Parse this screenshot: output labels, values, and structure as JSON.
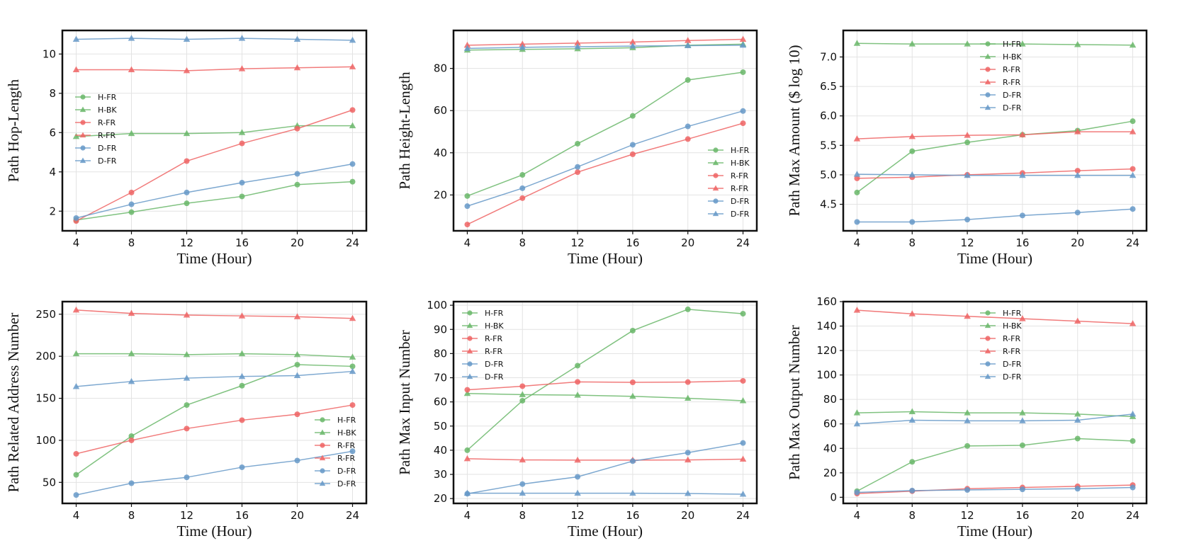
{
  "colors": {
    "green": "#6ab76a",
    "red": "#ee6464",
    "blue": "#6699c8",
    "frame": "#111111",
    "grid": "#e3e3e3"
  },
  "chart_data": [
    {
      "type": "line",
      "xlabel": "Time (Hour)",
      "ylabel": "Path Hop-Length",
      "x": [
        4,
        8,
        12,
        16,
        20,
        24
      ],
      "xlim": [
        3,
        25
      ],
      "ylim": [
        1,
        11.2
      ],
      "yticks": [
        2,
        4,
        6,
        8,
        10
      ],
      "ytick_labels": [
        "2",
        "4",
        "6",
        "8",
        "10"
      ],
      "legend_loc": "center-left",
      "series": [
        {
          "name": "H-FR",
          "color": "green",
          "marker": "circle",
          "values": [
            1.55,
            1.95,
            2.4,
            2.75,
            3.35,
            3.5
          ]
        },
        {
          "name": "H-BK",
          "color": "green",
          "marker": "triangle",
          "values": [
            5.8,
            5.95,
            5.95,
            6.0,
            6.35,
            6.35
          ]
        },
        {
          "name": "R-FR",
          "color": "red",
          "marker": "circle",
          "values": [
            1.5,
            2.95,
            4.55,
            5.45,
            6.2,
            7.15
          ]
        },
        {
          "name": "R-FR",
          "color": "red",
          "marker": "triangle",
          "values": [
            9.2,
            9.2,
            9.15,
            9.25,
            9.3,
            9.35
          ]
        },
        {
          "name": "D-FR",
          "color": "blue",
          "marker": "circle",
          "values": [
            1.65,
            2.35,
            2.95,
            3.45,
            3.9,
            4.4
          ]
        },
        {
          "name": "D-FR",
          "color": "blue",
          "marker": "triangle",
          "values": [
            10.75,
            10.8,
            10.75,
            10.8,
            10.75,
            10.7
          ]
        }
      ]
    },
    {
      "type": "line",
      "xlabel": "Time (Hour)",
      "ylabel": "Path Height-Length",
      "x": [
        4,
        8,
        12,
        16,
        20,
        24
      ],
      "xlim": [
        3,
        25
      ],
      "ylim": [
        3,
        98
      ],
      "yticks": [
        20,
        40,
        60,
        80
      ],
      "ytick_labels": [
        "20",
        "40",
        "60",
        "80"
      ],
      "legend_loc": "lower-right",
      "series": [
        {
          "name": "H-FR",
          "color": "green",
          "marker": "circle",
          "values": [
            19.5,
            29.5,
            44.3,
            57.5,
            74.5,
            78.2
          ]
        },
        {
          "name": "H-BK",
          "color": "green",
          "marker": "triangle",
          "values": [
            88.7,
            89.0,
            89.3,
            89.8,
            91.0,
            91.5
          ]
        },
        {
          "name": "R-FR",
          "color": "red",
          "marker": "circle",
          "values": [
            6.0,
            18.5,
            30.8,
            39.3,
            46.5,
            54.0
          ]
        },
        {
          "name": "R-FR",
          "color": "red",
          "marker": "triangle",
          "values": [
            91.0,
            91.5,
            92.0,
            92.5,
            93.2,
            93.8
          ]
        },
        {
          "name": "D-FR",
          "color": "blue",
          "marker": "circle",
          "values": [
            14.7,
            23.2,
            33.3,
            43.8,
            52.5,
            59.8
          ]
        },
        {
          "name": "D-FR",
          "color": "blue",
          "marker": "triangle",
          "values": [
            89.5,
            90.0,
            90.3,
            90.6,
            90.8,
            91.0
          ]
        }
      ]
    },
    {
      "type": "line",
      "xlabel": "Time (Hour)",
      "ylabel": "Path Max Amount ($ log 10)",
      "x": [
        4,
        8,
        12,
        16,
        20,
        24
      ],
      "xlim": [
        3,
        25
      ],
      "ylim": [
        4.05,
        7.45
      ],
      "yticks": [
        4.5,
        5.0,
        5.5,
        6.0,
        6.5,
        7.0
      ],
      "ytick_labels": [
        "4.5",
        "5.0",
        "5.5",
        "6.0",
        "6.5",
        "7.0"
      ],
      "legend_loc": "top-left",
      "series": [
        {
          "name": "H-FR",
          "color": "green",
          "marker": "circle",
          "values": [
            4.7,
            5.4,
            5.55,
            5.68,
            5.75,
            5.91
          ]
        },
        {
          "name": "H-BK",
          "color": "green",
          "marker": "triangle",
          "values": [
            7.23,
            7.22,
            7.22,
            7.22,
            7.21,
            7.2
          ]
        },
        {
          "name": "R-FR",
          "color": "red",
          "marker": "circle",
          "values": [
            4.94,
            4.96,
            5.0,
            5.03,
            5.07,
            5.1
          ]
        },
        {
          "name": "R-FR",
          "color": "red",
          "marker": "triangle",
          "values": [
            5.61,
            5.65,
            5.67,
            5.68,
            5.73,
            5.73
          ]
        },
        {
          "name": "D-FR",
          "color": "blue",
          "marker": "circle",
          "values": [
            4.2,
            4.2,
            4.24,
            4.31,
            4.36,
            4.42
          ]
        },
        {
          "name": "D-FR",
          "color": "blue",
          "marker": "triangle",
          "values": [
            5.01,
            5.0,
            4.99,
            4.99,
            4.99,
            4.99
          ]
        }
      ]
    },
    {
      "type": "line",
      "xlabel": "Time (Hour)",
      "ylabel": "Path Related Address Number",
      "x": [
        4,
        8,
        12,
        16,
        20,
        24
      ],
      "xlim": [
        3,
        25
      ],
      "ylim": [
        25,
        265
      ],
      "yticks": [
        50,
        100,
        150,
        200,
        250
      ],
      "ytick_labels": [
        "50",
        "100",
        "150",
        "200",
        "250"
      ],
      "legend_loc": "lower-right",
      "series": [
        {
          "name": "H-FR",
          "color": "green",
          "marker": "circle",
          "values": [
            59,
            105,
            142,
            165,
            190,
            188
          ]
        },
        {
          "name": "H-BK",
          "color": "green",
          "marker": "triangle",
          "values": [
            203,
            203,
            202,
            203,
            202,
            199
          ]
        },
        {
          "name": "R-FR",
          "color": "red",
          "marker": "circle",
          "values": [
            84,
            100,
            114,
            124,
            131,
            142
          ]
        },
        {
          "name": "R-FR",
          "color": "red",
          "marker": "triangle",
          "values": [
            255,
            251,
            249,
            248,
            247,
            245
          ]
        },
        {
          "name": "D-FR",
          "color": "blue",
          "marker": "circle",
          "values": [
            35,
            49,
            56,
            68,
            76,
            87
          ]
        },
        {
          "name": "D-FR",
          "color": "blue",
          "marker": "triangle",
          "values": [
            164,
            170,
            174,
            176,
            177,
            182
          ]
        }
      ]
    },
    {
      "type": "line",
      "xlabel": "Time (Hour)",
      "ylabel": "Path Max Input Number",
      "x": [
        4,
        8,
        12,
        16,
        20,
        24
      ],
      "xlim": [
        3,
        25
      ],
      "ylim": [
        18,
        101.5
      ],
      "yticks": [
        20,
        30,
        40,
        50,
        60,
        70,
        80,
        90,
        100
      ],
      "ytick_labels": [
        "20",
        "30",
        "40",
        "50",
        "60",
        "70",
        "80",
        "90",
        "100"
      ],
      "legend_loc": "top-left",
      "series": [
        {
          "name": "H-FR",
          "color": "green",
          "marker": "circle",
          "values": [
            40,
            60.5,
            75,
            89.5,
            98.3,
            96.5
          ]
        },
        {
          "name": "H-BK",
          "color": "green",
          "marker": "triangle",
          "values": [
            63.5,
            63,
            62.8,
            62.3,
            61.5,
            60.5
          ]
        },
        {
          "name": "R-FR",
          "color": "red",
          "marker": "circle",
          "values": [
            65,
            66.5,
            68.3,
            68.1,
            68.2,
            68.7
          ]
        },
        {
          "name": "R-FR",
          "color": "red",
          "marker": "triangle",
          "values": [
            36.5,
            36,
            35.9,
            35.9,
            36,
            36.3
          ]
        },
        {
          "name": "D-FR",
          "color": "blue",
          "marker": "circle",
          "values": [
            22,
            26,
            29,
            35.5,
            39,
            43
          ]
        },
        {
          "name": "D-FR",
          "color": "blue",
          "marker": "triangle",
          "values": [
            22.2,
            22.2,
            22.2,
            22.2,
            22.1,
            21.8
          ]
        }
      ]
    },
    {
      "type": "line",
      "xlabel": "Time (Hour)",
      "ylabel": "Path Max Output Number",
      "x": [
        4,
        8,
        12,
        16,
        20,
        24
      ],
      "xlim": [
        3,
        25
      ],
      "ylim": [
        -5,
        160
      ],
      "yticks": [
        0,
        20,
        40,
        60,
        80,
        100,
        120,
        140,
        160
      ],
      "ytick_labels": [
        "0",
        "20",
        "40",
        "60",
        "80",
        "100",
        "120",
        "140",
        "160"
      ],
      "legend_loc": "top-center",
      "series": [
        {
          "name": "H-FR",
          "color": "green",
          "marker": "circle",
          "values": [
            5,
            29,
            42,
            42.5,
            48,
            46
          ]
        },
        {
          "name": "H-BK",
          "color": "green",
          "marker": "triangle",
          "values": [
            69,
            70,
            69,
            69,
            68,
            66
          ]
        },
        {
          "name": "R-FR",
          "color": "red",
          "marker": "circle",
          "values": [
            3,
            5,
            7,
            8,
            9,
            10
          ]
        },
        {
          "name": "R-FR",
          "color": "red",
          "marker": "triangle",
          "values": [
            153,
            150,
            148,
            146,
            144,
            142
          ]
        },
        {
          "name": "D-FR",
          "color": "blue",
          "marker": "circle",
          "values": [
            4,
            5.5,
            6,
            6.5,
            7,
            8
          ]
        },
        {
          "name": "D-FR",
          "color": "blue",
          "marker": "triangle",
          "values": [
            60,
            63,
            62.5,
            62.5,
            63,
            68
          ]
        }
      ]
    }
  ]
}
